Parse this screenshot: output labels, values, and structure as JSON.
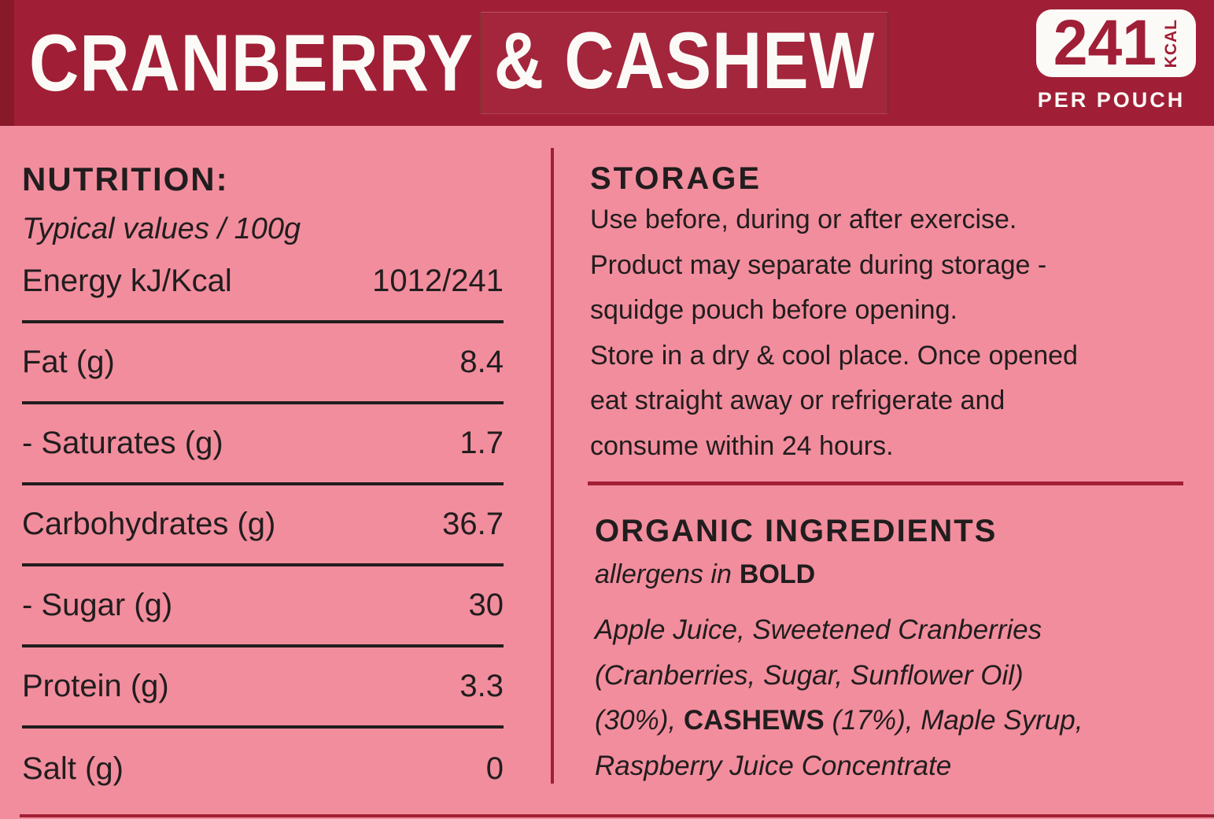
{
  "colors": {
    "header_red": "#A01F36",
    "header_red_dark": "#871929",
    "pink": "#F28D9D",
    "line_red": "#A11F35",
    "ink": "#211D1E",
    "white": "#FCFAF7"
  },
  "header": {
    "title_part1": "CRANBERRY",
    "title_part2": "& CASHEW",
    "kcal_value": "241",
    "kcal_unit": "KCAL",
    "per_pouch": "PER POUCH"
  },
  "nutrition": {
    "heading": "NUTRITION:",
    "subheading": "Typical values / 100g",
    "rows": [
      {
        "label": "Energy kJ/Kcal",
        "value": "1012/241"
      },
      {
        "label": "Fat (g)",
        "value": "8.4"
      },
      {
        "label": "- Saturates (g)",
        "value": "1.7"
      },
      {
        "label": "Carbohydrates (g)",
        "value": "36.7"
      },
      {
        "label": "- Sugar (g)",
        "value": "30"
      },
      {
        "label": "Protein (g)",
        "value": "3.3"
      },
      {
        "label": "Salt (g)",
        "value": "0"
      }
    ]
  },
  "storage": {
    "heading": "STORAGE",
    "lines": [
      "Use before, during or after exercise.",
      "Product may separate during storage -",
      "squidge pouch before opening.",
      "Store in a dry & cool place. Once opened",
      "eat straight away or refrigerate and",
      "consume within 24 hours."
    ]
  },
  "ingredients": {
    "heading": "ORGANIC INGREDIENTS",
    "allergen_note_italic": "allergens in",
    "allergen_note_bold": "BOLD",
    "lines": [
      {
        "pre": "Apple Juice, Sweetened Cranberries"
      },
      {
        "pre": "(Cranberries, Sugar, Sunflower Oil)"
      },
      {
        "pre": "(30%), ",
        "bold": "CASHEWS",
        "post": " (17%), Maple Syrup,"
      },
      {
        "pre": "Raspberry Juice Concentrate"
      }
    ]
  }
}
